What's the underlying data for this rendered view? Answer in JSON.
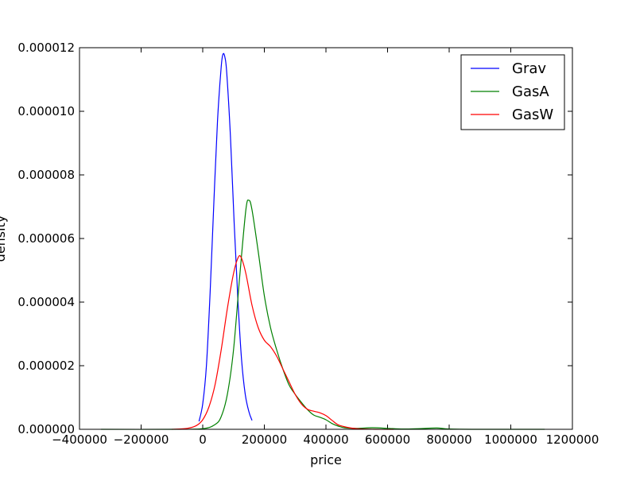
{
  "chart_data": {
    "type": "line",
    "title": "",
    "xlabel": "price",
    "ylabel": "density",
    "xlim": [
      -400000,
      1200000
    ],
    "ylim": [
      0,
      1.2e-05
    ],
    "x_ticks": [
      -400000,
      -200000,
      0,
      200000,
      400000,
      600000,
      800000,
      1000000,
      1200000
    ],
    "x_tick_labels": [
      "−400000",
      "−200000",
      "0",
      "200000",
      "400000",
      "600000",
      "800000",
      "1000000",
      "1200000"
    ],
    "y_ticks": [
      0,
      2e-06,
      4e-06,
      6e-06,
      8e-06,
      1e-05,
      1.2e-05
    ],
    "y_tick_labels": [
      "0.000000",
      "0.000002",
      "0.000004",
      "0.000006",
      "0.000008",
      "0.000010",
      "0.000012"
    ],
    "grid": false,
    "legend_position": "top-right",
    "series": [
      {
        "name": "Grav",
        "color": "#0000ff",
        "x": [
          -12000,
          0,
          12000,
          24000,
          36000,
          48000,
          60000,
          66000,
          72000,
          78000,
          90000,
          102000,
          114000,
          126000,
          138000,
          150000,
          160000
        ],
        "y": [
          2.5e-07,
          8e-07,
          2e-06,
          4.3e-06,
          7.1e-06,
          9.7e-06,
          1.14e-05,
          1.18e-05,
          1.17e-05,
          1.12e-05,
          9.2e-06,
          6.5e-06,
          4.1e-06,
          2.2e-06,
          1.1e-06,
          5.5e-07,
          2.8e-07
        ]
      },
      {
        "name": "GasA",
        "color": "#008000",
        "x": [
          -330000,
          -100000,
          0,
          40000,
          60000,
          80000,
          100000,
          120000,
          140000,
          150000,
          160000,
          180000,
          200000,
          220000,
          240000,
          260000,
          280000,
          300000,
          320000,
          340000,
          360000,
          380000,
          400000,
          420000,
          440000,
          460000,
          500000,
          550000,
          600000,
          650000,
          700000,
          760000,
          800000,
          900000,
          1000000,
          1110000
        ],
        "y": [
          0,
          0,
          2e-08,
          1.5e-07,
          4e-07,
          1.1e-06,
          2.5e-06,
          4.8e-06,
          6.9e-06,
          7.2e-06,
          6.9e-06,
          5.6e-06,
          4.2e-06,
          3.2e-06,
          2.5e-06,
          1.9e-06,
          1.4e-06,
          1.1e-06,
          8.5e-07,
          6.2e-07,
          4.5e-07,
          3.8e-07,
          3e-07,
          1.8e-07,
          1e-07,
          5e-08,
          3e-08,
          5e-08,
          3e-08,
          1e-08,
          2e-08,
          4e-08,
          1e-08,
          0,
          0,
          0
        ]
      },
      {
        "name": "GasW",
        "color": "#ff0000",
        "x": [
          -100000,
          -50000,
          -20000,
          0,
          20000,
          40000,
          60000,
          80000,
          100000,
          115000,
          125000,
          140000,
          160000,
          180000,
          200000,
          220000,
          240000,
          260000,
          280000,
          300000,
          320000,
          340000,
          360000,
          380000,
          400000,
          420000,
          440000,
          470000,
          500000,
          560000,
          620000
        ],
        "y": [
          0,
          3e-08,
          1.2e-07,
          3e-07,
          7e-07,
          1.4e-06,
          2.5e-06,
          3.8e-06,
          4.9e-06,
          5.4e-06,
          5.4e-06,
          4.9e-06,
          3.9e-06,
          3.2e-06,
          2.8e-06,
          2.6e-06,
          2.3e-06,
          1.9e-06,
          1.5e-06,
          1.1e-06,
          8e-07,
          6.3e-07,
          5.7e-07,
          5.2e-07,
          4.3e-07,
          2.8e-07,
          1.4e-07,
          6e-08,
          2e-08,
          0,
          0
        ]
      }
    ]
  }
}
